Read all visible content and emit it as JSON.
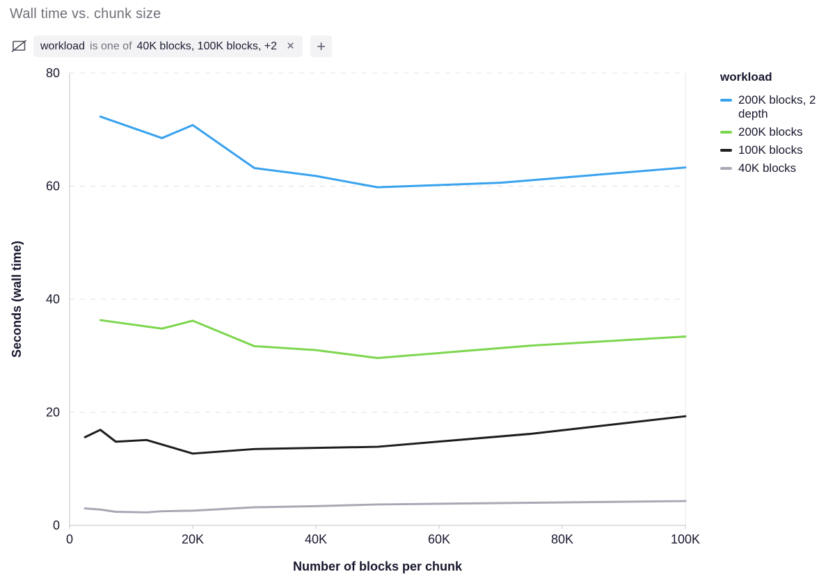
{
  "header": {
    "title": "Wall time vs. chunk size"
  },
  "filter": {
    "field": "workload",
    "operator": "is one of",
    "values": "40K blocks, 100K blocks, +2",
    "remove_icon": "×",
    "add_icon": "+"
  },
  "chart_data": {
    "type": "line",
    "title": "Wall time vs. chunk size",
    "xlabel": "Number of blocks per chunk",
    "ylabel": "Seconds (wall time)",
    "xlim": [
      0,
      100000
    ],
    "ylim": [
      0,
      80
    ],
    "grid": "horizontal-dashed",
    "legend_position": "right",
    "legend_title": "workload",
    "x_ticks": [
      {
        "v": 0,
        "label": "0"
      },
      {
        "v": 20000,
        "label": "20K"
      },
      {
        "v": 40000,
        "label": "40K"
      },
      {
        "v": 60000,
        "label": "60K"
      },
      {
        "v": 80000,
        "label": "80K"
      },
      {
        "v": 100000,
        "label": "100K"
      }
    ],
    "y_ticks": [
      {
        "v": 0,
        "label": "0"
      },
      {
        "v": 20,
        "label": "20"
      },
      {
        "v": 40,
        "label": "40"
      },
      {
        "v": 60,
        "label": "60"
      },
      {
        "v": 80,
        "label": "80"
      }
    ],
    "series": [
      {
        "name": "200K blocks, 2 depth",
        "color": "#38a2ef",
        "x": [
          5000,
          15000,
          20000,
          30000,
          40000,
          50000,
          70000,
          100000
        ],
        "y": [
          72.3,
          68.5,
          70.8,
          63.2,
          61.8,
          59.8,
          60.6,
          63.3
        ]
      },
      {
        "name": "200K blocks",
        "color": "#7dd64f",
        "x": [
          5000,
          15000,
          20000,
          30000,
          40000,
          50000,
          75000,
          100000
        ],
        "y": [
          36.3,
          34.8,
          36.2,
          31.7,
          31.0,
          29.6,
          31.8,
          33.4
        ]
      },
      {
        "name": "100K blocks",
        "color": "#1d1d1d",
        "x": [
          2500,
          5000,
          7500,
          12500,
          20000,
          30000,
          50000,
          75000,
          100000
        ],
        "y": [
          15.6,
          16.9,
          14.8,
          15.1,
          12.7,
          13.5,
          13.9,
          16.2,
          19.3
        ]
      },
      {
        "name": "40K blocks",
        "color": "#a8a8b5",
        "x": [
          2500,
          5000,
          7500,
          12500,
          15000,
          20000,
          30000,
          40000,
          50000,
          75000,
          100000
        ],
        "y": [
          3.0,
          2.8,
          2.4,
          2.3,
          2.5,
          2.6,
          3.2,
          3.4,
          3.7,
          4.0,
          4.3
        ]
      }
    ]
  }
}
